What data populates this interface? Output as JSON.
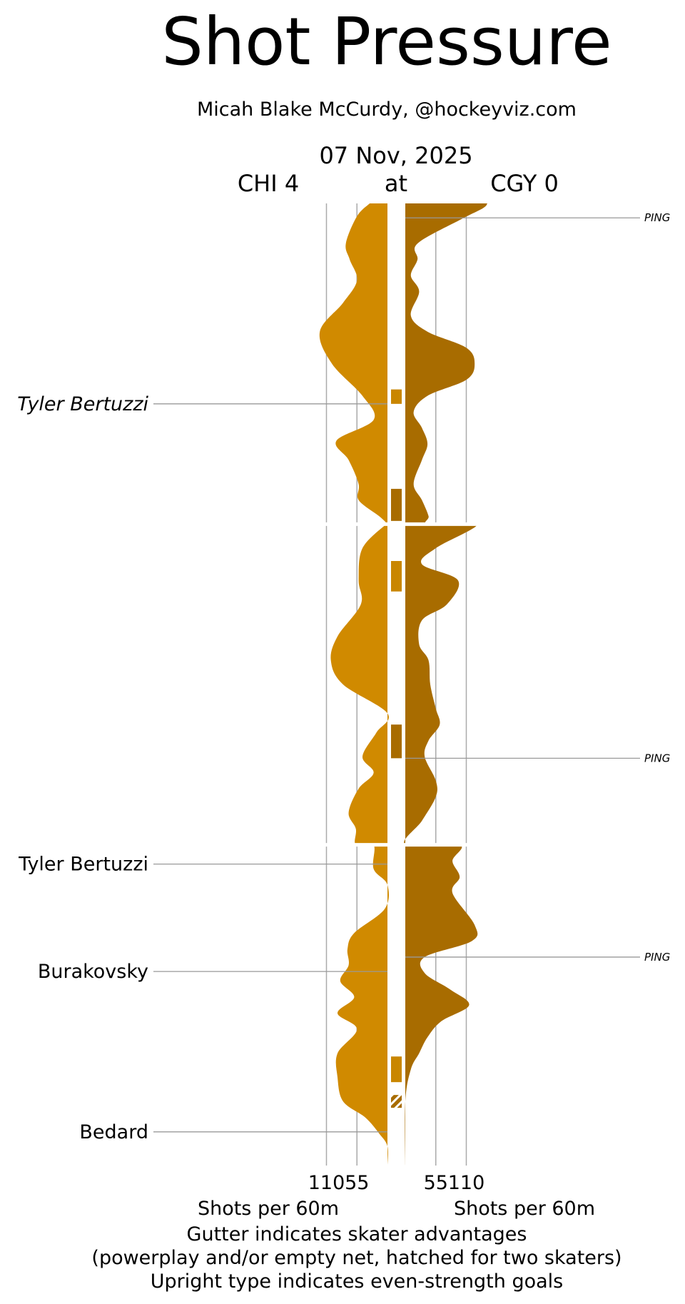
{
  "chart_data": {
    "type": "area",
    "title": "Shot Pressure",
    "subtitle": "Micah Blake McCurdy, @hockeyviz.com",
    "date": "07 Nov, 2025",
    "away_label": "CHI 4",
    "at_label": "at",
    "home_label": "CGY 0",
    "xlabel_left": "Shots per 60m",
    "xlabel_right": "Shots per 60m",
    "x_ticks": [
      110,
      55
    ],
    "footnotes": [
      "Gutter indicates skater advantages",
      "(powerplay and/or empty net, hatched for two skaters)",
      "Upright type indicates even-strength goals"
    ],
    "colors": {
      "away": "#d08a00",
      "home": "#a86c00",
      "gutter_away": "#c98600",
      "gutter_home": "#a86c00",
      "gridline": "#aaaaaa",
      "annotation_line": "#999999"
    },
    "periods": 3,
    "game_minutes": 60,
    "series": [
      {
        "name": "CHI 4",
        "side": "left",
        "points": [
          [
            0,
            32
          ],
          [
            0.8,
            55
          ],
          [
            2.5,
            75
          ],
          [
            3.5,
            68
          ],
          [
            4.8,
            55
          ],
          [
            6.2,
            80
          ],
          [
            8,
            122
          ],
          [
            10,
            100
          ],
          [
            12,
            45
          ],
          [
            13.5,
            25
          ],
          [
            14.8,
            92
          ],
          [
            16,
            70
          ],
          [
            17.5,
            52
          ],
          [
            18.5,
            52
          ],
          [
            19.5,
            15
          ],
          [
            20,
            0
          ],
          [
            20,
            2
          ],
          [
            21.5,
            45
          ],
          [
            23.5,
            52
          ],
          [
            25,
            48
          ],
          [
            27,
            90
          ],
          [
            28.5,
            102
          ],
          [
            30,
            80
          ],
          [
            31.8,
            0
          ],
          [
            33,
            20
          ],
          [
            34.5,
            45
          ],
          [
            35.5,
            25
          ],
          [
            36.5,
            52
          ],
          [
            38,
            70
          ],
          [
            39,
            57
          ],
          [
            40,
            57
          ],
          [
            40,
            25
          ],
          [
            41.5,
            25
          ],
          [
            42.5,
            0
          ],
          [
            44,
            5
          ],
          [
            45.5,
            60
          ],
          [
            46.5,
            72
          ],
          [
            47.5,
            70
          ],
          [
            48.5,
            85
          ],
          [
            49.5,
            60
          ],
          [
            50.5,
            90
          ],
          [
            51.5,
            55
          ],
          [
            53,
            90
          ],
          [
            54.5,
            90
          ],
          [
            56,
            80
          ],
          [
            57,
            40
          ],
          [
            58,
            15
          ],
          [
            58.8,
            0
          ],
          [
            60,
            0
          ]
        ]
      },
      {
        "name": "CGY 0",
        "side": "right",
        "points": [
          [
            0,
            148
          ],
          [
            0.3,
            140
          ],
          [
            1,
            100
          ],
          [
            2.5,
            22
          ],
          [
            3.5,
            22
          ],
          [
            4.5,
            10
          ],
          [
            5.5,
            25
          ],
          [
            7,
            10
          ],
          [
            8,
            40
          ],
          [
            9,
            110
          ],
          [
            10,
            125
          ],
          [
            11,
            110
          ],
          [
            12,
            40
          ],
          [
            13,
            15
          ],
          [
            14,
            30
          ],
          [
            15,
            40
          ],
          [
            16,
            30
          ],
          [
            17.5,
            15
          ],
          [
            18.5,
            30
          ],
          [
            19.5,
            42
          ],
          [
            20,
            42
          ],
          [
            20,
            130
          ],
          [
            21.5,
            55
          ],
          [
            22.5,
            30
          ],
          [
            23.5,
            95
          ],
          [
            25,
            75
          ],
          [
            26,
            30
          ],
          [
            27.5,
            25
          ],
          [
            28.5,
            42
          ],
          [
            30,
            45
          ],
          [
            31.5,
            55
          ],
          [
            32.5,
            62
          ],
          [
            33.5,
            42
          ],
          [
            34.5,
            35
          ],
          [
            36,
            55
          ],
          [
            37,
            55
          ],
          [
            38.5,
            30
          ],
          [
            40,
            0
          ],
          [
            40,
            98
          ],
          [
            41,
            85
          ],
          [
            42,
            98
          ],
          [
            43,
            85
          ],
          [
            45,
            125
          ],
          [
            46,
            120
          ],
          [
            47,
            35
          ],
          [
            48,
            35
          ],
          [
            49,
            80
          ],
          [
            50,
            115
          ],
          [
            51,
            65
          ],
          [
            52,
            40
          ],
          [
            53,
            25
          ],
          [
            54,
            10
          ],
          [
            56,
            0
          ],
          [
            60,
            0
          ]
        ]
      }
    ],
    "gutter": [
      {
        "side": "away",
        "start": 11.6,
        "end": 12.5,
        "hatched": false
      },
      {
        "side": "home",
        "start": 17.8,
        "end": 19.8,
        "hatched": false
      },
      {
        "side": "away",
        "start": 22.3,
        "end": 24.2,
        "hatched": false
      },
      {
        "side": "home",
        "start": 32.5,
        "end": 34.6,
        "hatched": false
      },
      {
        "side": "away",
        "start": 53.2,
        "end": 54.8,
        "hatched": false
      },
      {
        "side": "home",
        "start": 55.6,
        "end": 56.4,
        "hatched": true
      }
    ],
    "goals": [
      {
        "team": "CHI 4",
        "player": "Tyler Bertuzzi",
        "minute": 12.5,
        "even_strength": false
      },
      {
        "team": "CHI 4",
        "player": "Tyler Bertuzzi",
        "minute": 41.2,
        "even_strength": true
      },
      {
        "team": "CHI 4",
        "player": "Burakovsky",
        "minute": 47.9,
        "even_strength": true
      },
      {
        "team": "CHI 4",
        "player": "Bedard",
        "minute": 57.9,
        "even_strength": true
      }
    ],
    "pings": [
      {
        "team": "CGY 0",
        "label": "PING",
        "minute": 0.9
      },
      {
        "team": "CGY 0",
        "label": "PING",
        "minute": 34.6
      },
      {
        "team": "CGY 0",
        "label": "PING",
        "minute": 47.0
      }
    ]
  }
}
